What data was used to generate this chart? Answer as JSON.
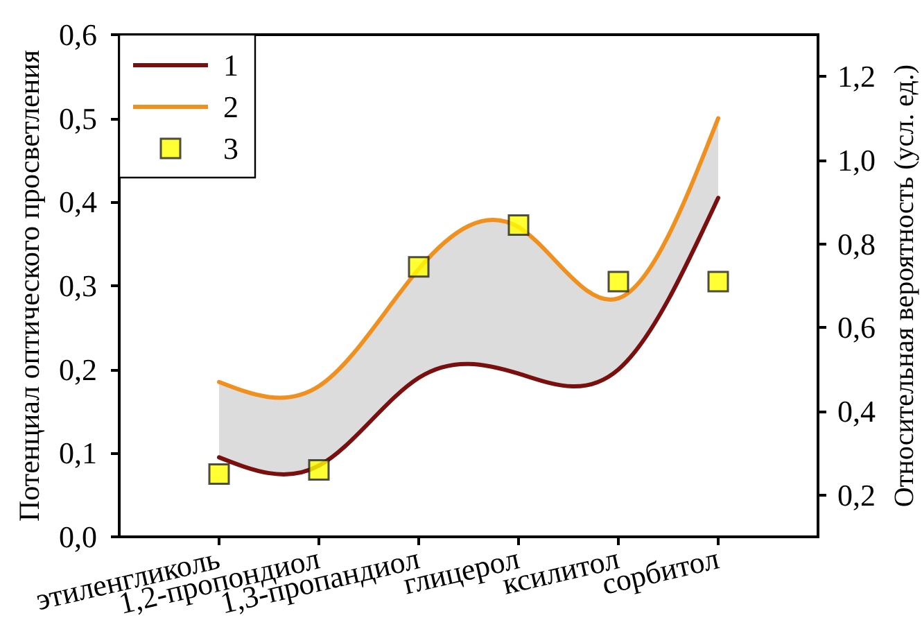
{
  "chart_data": {
    "type": "line",
    "ylabel": "Потенциал оптического просветления",
    "y2label": "Относительная вероятность (усл. ед.)",
    "categories": [
      "этиленгликоль",
      "1,2-пропондиол",
      "1,3-пропандиол",
      "глицерол",
      "ксилитол",
      "сорбитол"
    ],
    "series": [
      {
        "name": "1",
        "color": "#7a0f0f",
        "marker": "none",
        "values": [
          0.095,
          0.085,
          0.19,
          0.195,
          0.2,
          0.405
        ]
      },
      {
        "name": "2",
        "color": "#f0901e",
        "marker": "none",
        "values": [
          0.185,
          0.18,
          0.32,
          0.37,
          0.285,
          0.5
        ],
        "lower": [
          0.095,
          0.085,
          0.19,
          0.195,
          0.2,
          0.405
        ],
        "upper": [
          0.185,
          0.18,
          0.32,
          0.37,
          0.285,
          0.5
        ]
      },
      {
        "name": "3",
        "type": "scatter",
        "axis": "y2",
        "color": "#ffff00",
        "marker": "square",
        "values": [
          0.25,
          0.26,
          0.745,
          0.845,
          0.71,
          0.71
        ]
      }
    ],
    "ylim": [
      0,
      0.6
    ],
    "yticks": [
      {
        "value": 0,
        "label": "0,0"
      },
      {
        "value": 0.1,
        "label": "0,1"
      },
      {
        "value": 0.2,
        "label": "0,2"
      },
      {
        "value": 0.3,
        "label": "0,3"
      },
      {
        "value": 0.4,
        "label": "0,4"
      },
      {
        "value": 0.5,
        "label": "0,5"
      },
      {
        "value": 0.6,
        "label": "0,6"
      }
    ],
    "y2lim": [
      0.1,
      1.3
    ],
    "y2ticks": [
      {
        "value": 0.2,
        "label": "0,2"
      },
      {
        "value": 0.4,
        "label": "0,4"
      },
      {
        "value": 0.6,
        "label": "0,6"
      },
      {
        "value": 0.8,
        "label": "0,8"
      },
      {
        "value": 1,
        "label": "1,0"
      },
      {
        "value": 1.2,
        "label": "1,2"
      }
    ],
    "legend": "top left"
  }
}
